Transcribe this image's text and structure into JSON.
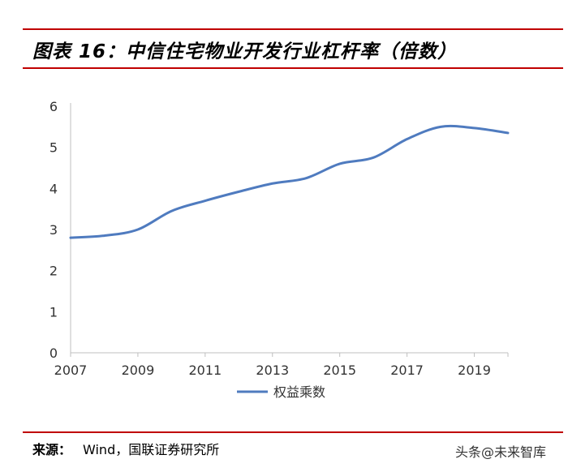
{
  "header": {
    "title": "图表 16：中信住宅物业开发行业杠杆率（倍数）"
  },
  "chart_data": {
    "type": "line",
    "title": "中信住宅物业开发行业杠杆率（倍数）",
    "xlabel": "",
    "ylabel": "",
    "x": [
      2007,
      2008,
      2009,
      2010,
      2011,
      2012,
      2013,
      2014,
      2015,
      2016,
      2017,
      2018,
      2019,
      2020
    ],
    "xticks": [
      "2007",
      "2009",
      "2011",
      "2013",
      "2015",
      "2017",
      "2019"
    ],
    "yticks": [
      "0",
      "1",
      "2",
      "3",
      "4",
      "5",
      "6"
    ],
    "xlim": [
      2007,
      2020
    ],
    "ylim": [
      0,
      6
    ],
    "series": [
      {
        "name": "权益乘数",
        "color": "#4f7bbf",
        "values": [
          2.8,
          2.85,
          3.0,
          3.45,
          3.7,
          3.92,
          4.12,
          4.25,
          4.6,
          4.75,
          5.2,
          5.5,
          5.47,
          5.35
        ]
      }
    ],
    "legend": "bottom-center"
  },
  "footer": {
    "source_label": "来源：",
    "source_text": "Wind，国联证券研究所",
    "watermark": "头条@未来智库"
  }
}
